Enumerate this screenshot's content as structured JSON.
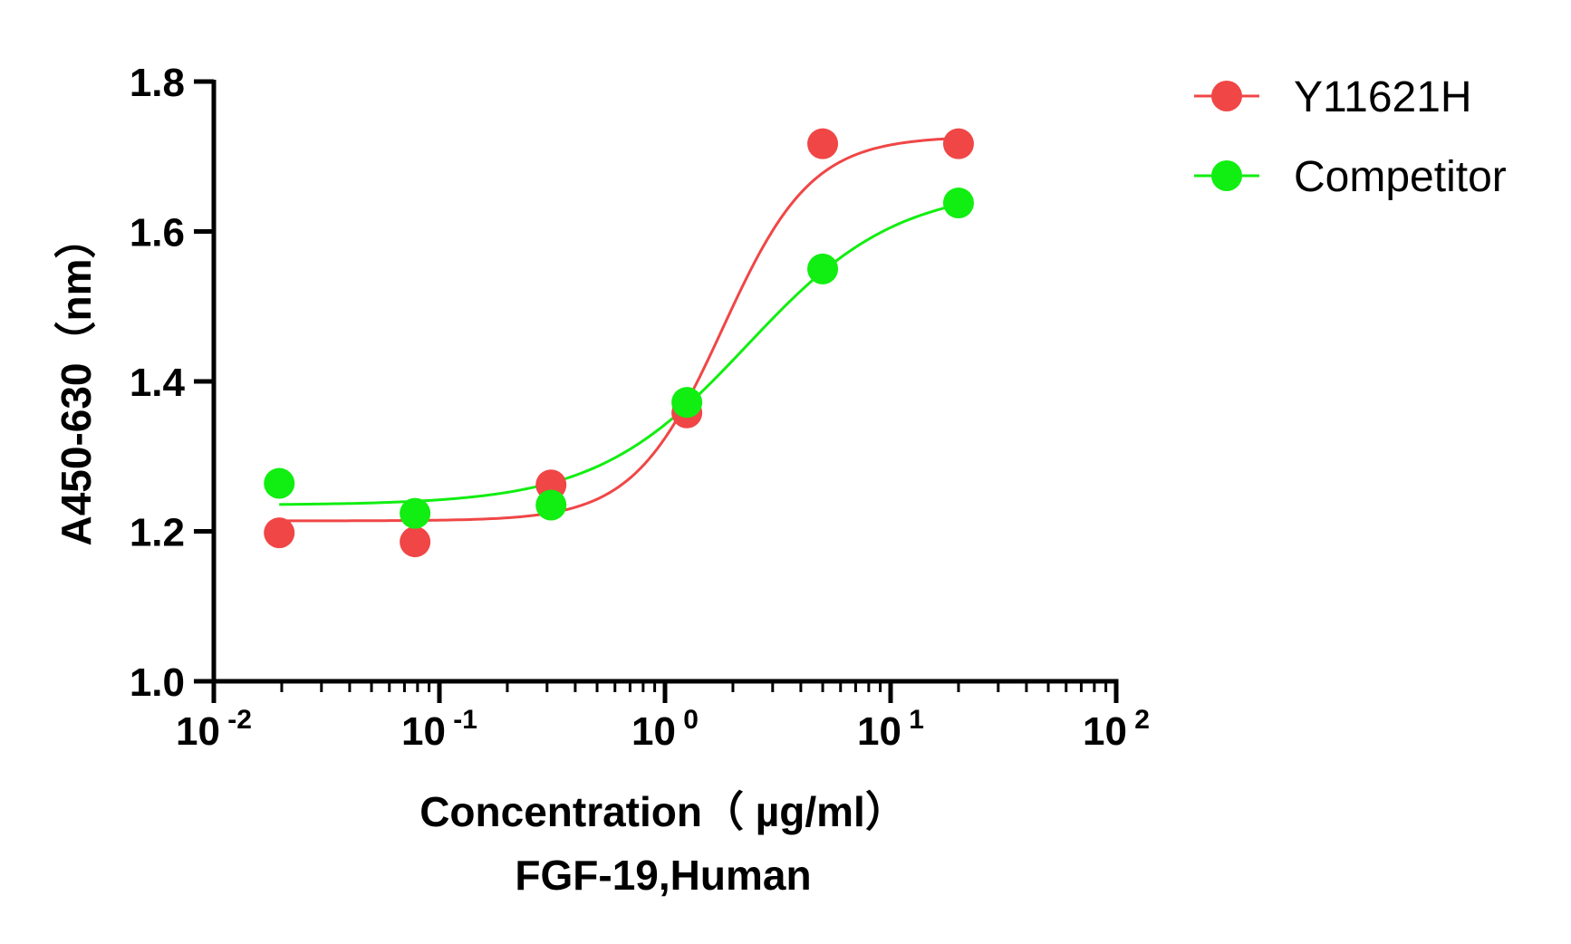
{
  "chart_data": {
    "type": "scatter",
    "title": "",
    "xlabel": "Concentration（ µg/ml）",
    "xlabel_line2": "FGF-19,Human",
    "ylabel": "A450-630（nm）",
    "x_scale": "log",
    "xlim": [
      0.01,
      100
    ],
    "ylim": [
      1.0,
      1.8
    ],
    "x_ticks": [
      {
        "value": 0.01,
        "base": "10",
        "exp": "-2"
      },
      {
        "value": 0.1,
        "base": "10",
        "exp": "-1"
      },
      {
        "value": 1,
        "base": "10",
        "exp": "0"
      },
      {
        "value": 10,
        "base": "10",
        "exp": "1"
      },
      {
        "value": 100,
        "base": "10",
        "exp": "2"
      }
    ],
    "y_ticks": [
      {
        "value": 1.0,
        "label": "1.0"
      },
      {
        "value": 1.2,
        "label": "1.2"
      },
      {
        "value": 1.4,
        "label": "1.4"
      },
      {
        "value": 1.6,
        "label": "1.6"
      },
      {
        "value": 1.8,
        "label": "1.8"
      }
    ],
    "grid": false,
    "legend_position": "top-right",
    "series": [
      {
        "name": "Y11621H",
        "color": "#f04646",
        "x": [
          0.0195,
          0.078,
          0.3125,
          1.25,
          5,
          20
        ],
        "y": [
          1.198,
          1.186,
          1.262,
          1.358,
          1.717,
          1.717
        ],
        "fit": {
          "bottom": 1.214,
          "top": 1.727,
          "ec50": 1.8,
          "hill": 2.2
        }
      },
      {
        "name": "Competitor",
        "color": "#11ee11",
        "x": [
          0.0195,
          0.078,
          0.3125,
          1.25,
          5,
          20
        ],
        "y": [
          1.264,
          1.224,
          1.235,
          1.372,
          1.55,
          1.638
        ],
        "fit": {
          "bottom": 1.235,
          "top": 1.66,
          "ec50": 2.3,
          "hill": 1.3
        }
      }
    ]
  }
}
